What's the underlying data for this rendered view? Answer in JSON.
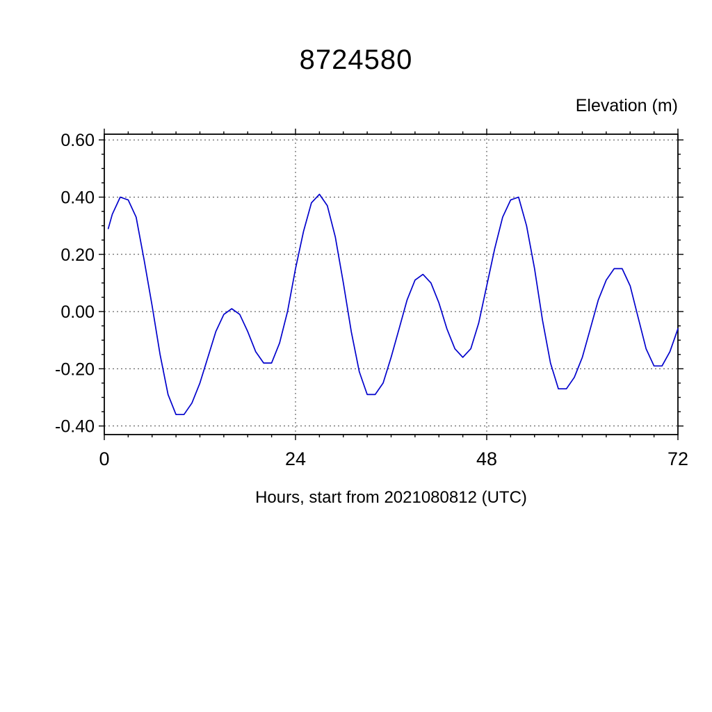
{
  "page": {
    "background": "#ffffff"
  },
  "header": {
    "title": "8724580",
    "ylabel": "Elevation (m)",
    "xlabel": "Hours, start from 2021080812 (UTC)"
  },
  "chart_data": {
    "type": "line",
    "title": "8724580",
    "xlabel": "Hours, start from 2021080812 (UTC)",
    "ylabel": "Elevation (m)",
    "xlim": [
      0,
      72
    ],
    "ylim": [
      -0.43,
      0.62
    ],
    "x_major_ticks": [
      0,
      24,
      48,
      72
    ],
    "x_tick_labels": [
      "0",
      "24",
      "48",
      "72"
    ],
    "x_minor_step": 3,
    "y_major_ticks": [
      -0.4,
      -0.2,
      0.0,
      0.2,
      0.4,
      0.6
    ],
    "y_tick_labels": [
      "-0.40",
      "-0.20",
      "0.00",
      "0.20",
      "0.40",
      "0.60"
    ],
    "y_minor_step": 0.05,
    "grid": "dashed-at-major-ticks",
    "legend": "none",
    "frame": "box",
    "line_color": "#0000cc",
    "grid_color": "#444444",
    "series": [
      {
        "name": "elevation",
        "x": [
          0.5,
          1,
          2,
          3,
          4,
          5,
          6,
          7,
          8,
          9,
          10,
          11,
          12,
          13,
          14,
          15,
          16,
          17,
          18,
          19,
          20,
          21,
          22,
          23,
          24,
          25,
          26,
          27,
          28,
          29,
          30,
          31,
          32,
          33,
          34,
          35,
          36,
          37,
          38,
          39,
          40,
          41,
          42,
          43,
          44,
          45,
          46,
          47,
          48,
          49,
          50,
          51,
          52,
          53,
          54,
          55,
          56,
          57,
          58,
          59,
          60,
          61,
          62,
          63,
          64,
          65,
          66,
          67,
          68,
          69,
          70,
          71,
          72
        ],
        "y": [
          0.29,
          0.34,
          0.4,
          0.39,
          0.33,
          0.18,
          0.02,
          -0.15,
          -0.29,
          -0.36,
          -0.36,
          -0.32,
          -0.25,
          -0.16,
          -0.07,
          -0.01,
          0.01,
          -0.01,
          -0.07,
          -0.14,
          -0.18,
          -0.18,
          -0.11,
          0.0,
          0.15,
          0.28,
          0.38,
          0.41,
          0.37,
          0.26,
          0.1,
          -0.07,
          -0.21,
          -0.29,
          -0.29,
          -0.25,
          -0.16,
          -0.06,
          0.04,
          0.11,
          0.13,
          0.1,
          0.03,
          -0.06,
          -0.13,
          -0.16,
          -0.13,
          -0.04,
          0.09,
          0.22,
          0.33,
          0.39,
          0.4,
          0.3,
          0.15,
          -0.03,
          -0.18,
          -0.27,
          -0.27,
          -0.23,
          -0.16,
          -0.06,
          0.04,
          0.11,
          0.15,
          0.15,
          0.09,
          -0.02,
          -0.13,
          -0.19,
          -0.19,
          -0.14,
          -0.06
        ]
      }
    ]
  }
}
